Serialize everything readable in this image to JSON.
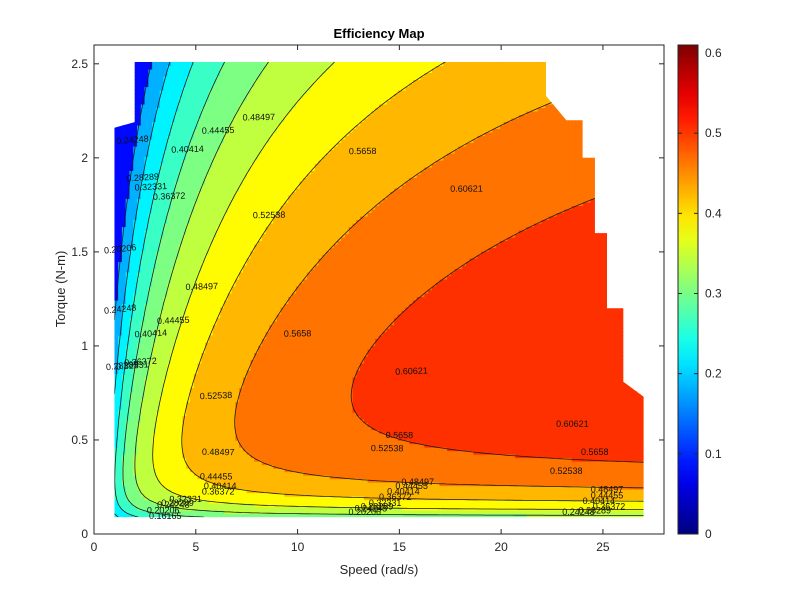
{
  "chart_data": {
    "type": "contour",
    "title": "Efficiency Map",
    "xlabel": "Speed (rad/s)",
    "ylabel": "Torque (N-m)",
    "xlim": [
      0,
      28
    ],
    "ylim": [
      0,
      2.6
    ],
    "xticks": [
      0,
      5,
      10,
      15,
      20,
      25
    ],
    "yticks": [
      0,
      0.5,
      1,
      1.5,
      2,
      2.5
    ],
    "colorbar": {
      "colormap": "jet",
      "range": [
        0,
        0.61
      ],
      "ticks": [
        0,
        0.1,
        0.2,
        0.3,
        0.4,
        0.5,
        0.6
      ],
      "tick_labels": [
        "0",
        "0.1",
        "0.2",
        "0.3",
        "0.4",
        "0.5",
        "0.6"
      ]
    },
    "contour_levels": [
      0.16165,
      0.20206,
      0.24248,
      0.28289,
      0.32331,
      0.36372,
      0.40414,
      0.44455,
      0.48497,
      0.52538,
      0.5658,
      0.60621
    ],
    "contour_labels": [
      {
        "text": "0.24248",
        "x": 1.9,
        "y": 2.08
      },
      {
        "text": "0.28289",
        "x": 2.4,
        "y": 1.88
      },
      {
        "text": "0.32331",
        "x": 2.8,
        "y": 1.83
      },
      {
        "text": "0.36372",
        "x": 3.7,
        "y": 1.78
      },
      {
        "text": "0.40414",
        "x": 4.6,
        "y": 2.03
      },
      {
        "text": "0.44455",
        "x": 6.1,
        "y": 2.13
      },
      {
        "text": "0.48497",
        "x": 8.1,
        "y": 2.2
      },
      {
        "text": "0.20206",
        "x": 1.3,
        "y": 1.5
      },
      {
        "text": "0.24248",
        "x": 1.3,
        "y": 1.18
      },
      {
        "text": "0.28289",
        "x": 1.4,
        "y": 0.88
      },
      {
        "text": "0.32331",
        "x": 1.9,
        "y": 0.88
      },
      {
        "text": "0.36372",
        "x": 2.3,
        "y": 0.9
      },
      {
        "text": "0.40414",
        "x": 2.8,
        "y": 1.05
      },
      {
        "text": "0.44455",
        "x": 3.9,
        "y": 1.12
      },
      {
        "text": "0.48497",
        "x": 5.3,
        "y": 1.3
      },
      {
        "text": "0.52538",
        "x": 8.6,
        "y": 1.68
      },
      {
        "text": "0.5658",
        "x": 13.2,
        "y": 2.02
      },
      {
        "text": "0.60621",
        "x": 18.3,
        "y": 1.82
      },
      {
        "text": "0.5658",
        "x": 10,
        "y": 1.05
      },
      {
        "text": "0.60621",
        "x": 15.6,
        "y": 0.85
      },
      {
        "text": "0.52538",
        "x": 6,
        "y": 0.72
      },
      {
        "text": "0.48497",
        "x": 6.1,
        "y": 0.42
      },
      {
        "text": "0.5658",
        "x": 15,
        "y": 0.51
      },
      {
        "text": "0.52538",
        "x": 14.4,
        "y": 0.44
      },
      {
        "text": "0.60621",
        "x": 23.5,
        "y": 0.57
      },
      {
        "text": "0.5658",
        "x": 24.6,
        "y": 0.42
      },
      {
        "text": "0.52538",
        "x": 23.2,
        "y": 0.32
      },
      {
        "text": "0.48497",
        "x": 25.2,
        "y": 0.22
      },
      {
        "text": "0.44455",
        "x": 6,
        "y": 0.29
      },
      {
        "text": "0.40414",
        "x": 6.2,
        "y": 0.24
      },
      {
        "text": "0.36372",
        "x": 6.1,
        "y": 0.21
      },
      {
        "text": "0.32331",
        "x": 4.5,
        "y": 0.17
      },
      {
        "text": "0.28289",
        "x": 4.1,
        "y": 0.15
      },
      {
        "text": "0.24248",
        "x": 3.9,
        "y": 0.14
      },
      {
        "text": "0.20206",
        "x": 3.4,
        "y": 0.11
      },
      {
        "text": "0.16165",
        "x": 3.5,
        "y": 0.08
      },
      {
        "text": "0.48497",
        "x": 15.9,
        "y": 0.26
      },
      {
        "text": "0.44455",
        "x": 15.6,
        "y": 0.24
      },
      {
        "text": "0.40414",
        "x": 15.2,
        "y": 0.21
      },
      {
        "text": "0.36372",
        "x": 14.8,
        "y": 0.18
      },
      {
        "text": "0.32331",
        "x": 14.3,
        "y": 0.15
      },
      {
        "text": "0.28289",
        "x": 13.9,
        "y": 0.13
      },
      {
        "text": "0.24248",
        "x": 13.6,
        "y": 0.12
      },
      {
        "text": "0.20206",
        "x": 13.3,
        "y": 0.1
      },
      {
        "text": "0.44455",
        "x": 25.2,
        "y": 0.19
      },
      {
        "text": "0.40414",
        "x": 24.8,
        "y": 0.16
      },
      {
        "text": "0.36372",
        "x": 25.3,
        "y": 0.13
      },
      {
        "text": "0.28289",
        "x": 24.6,
        "y": 0.11
      },
      {
        "text": "0.24248",
        "x": 23.8,
        "y": 0.1
      }
    ]
  }
}
